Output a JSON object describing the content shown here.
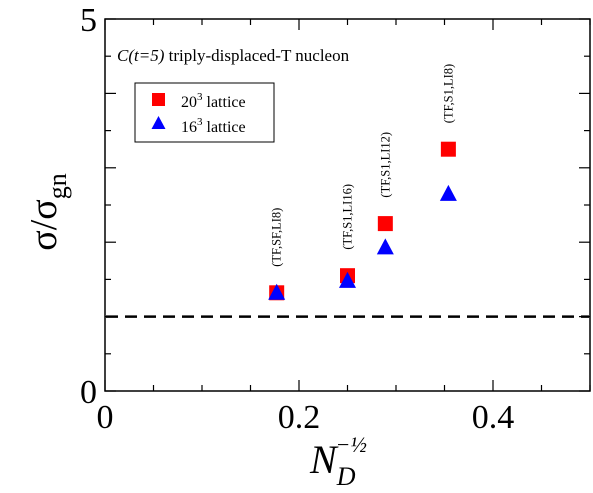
{
  "chart_data": {
    "type": "scatter",
    "annotation": {
      "func": "C(t=5)",
      "rest": " triply-displaced-T nucleon"
    },
    "xlabel": {
      "base": "N",
      "sub": "D",
      "sup": "−½"
    },
    "ylabel": {
      "base": "σ/σ",
      "sub": "gn"
    },
    "xlim": [
      0,
      0.5
    ],
    "ylim": [
      0,
      5
    ],
    "x_ticks": [
      {
        "value": 0,
        "label": "0"
      },
      {
        "value": 0.2,
        "label": "0.2"
      },
      {
        "value": 0.4,
        "label": "0.4"
      }
    ],
    "y_ticks": [
      {
        "value": 0,
        "label": "0"
      },
      {
        "value": 5,
        "label": "5"
      }
    ],
    "reference_line": {
      "y": 1,
      "style": "dashed"
    },
    "series": [
      {
        "name": "20³ lattice",
        "name_base": "20",
        "name_sup": "3",
        "name_rest": " lattice",
        "marker": "square",
        "color": "#ff0000",
        "points": [
          {
            "x": 0.177,
            "y": 1.32
          },
          {
            "x": 0.25,
            "y": 1.55
          },
          {
            "x": 0.289,
            "y": 2.25
          },
          {
            "x": 0.354,
            "y": 3.25
          }
        ]
      },
      {
        "name": "16³ lattice",
        "name_base": "16",
        "name_sup": "3",
        "name_rest": " lattice",
        "marker": "triangle",
        "color": "#0000ff",
        "points": [
          {
            "x": 0.177,
            "y": 1.32
          },
          {
            "x": 0.25,
            "y": 1.48
          },
          {
            "x": 0.289,
            "y": 1.93
          },
          {
            "x": 0.354,
            "y": 2.65
          }
        ]
      }
    ],
    "point_labels": [
      {
        "x": 0.177,
        "text": "(TF,SF,LI8)"
      },
      {
        "x": 0.25,
        "text": "(TF,S1,LI16)"
      },
      {
        "x": 0.289,
        "text": "(TF,S1,LI12)"
      },
      {
        "x": 0.354,
        "text": "(TF,S1,LI8)"
      }
    ]
  }
}
